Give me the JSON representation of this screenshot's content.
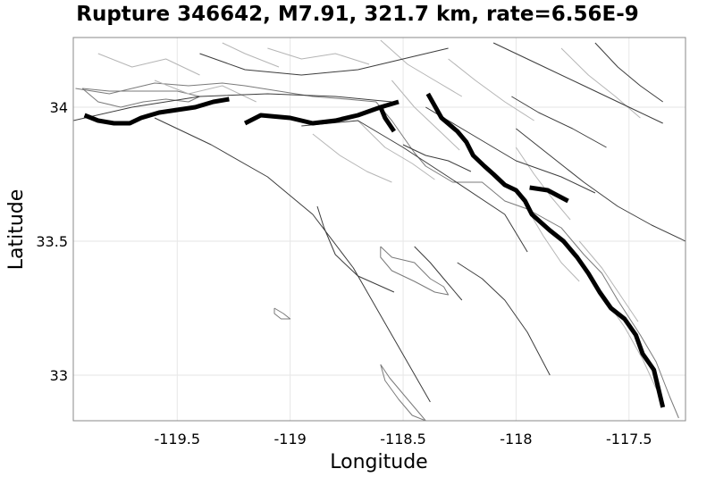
{
  "chart_data": {
    "type": "map",
    "title": "Rupture 346642, M7.91, 321.7 km, rate=6.56E-9",
    "xlabel": "Longitude",
    "ylabel": "Latitude",
    "xlim": [
      -119.96,
      -117.25
    ],
    "ylim": [
      32.83,
      34.26
    ],
    "x_ticks": [
      {
        "value": -119.5,
        "label": "-119.5"
      },
      {
        "value": -119.0,
        "label": "-119"
      },
      {
        "value": -118.5,
        "label": "-118.5"
      },
      {
        "value": -118.0,
        "label": "-118"
      },
      {
        "value": -117.5,
        "label": "-117.5"
      }
    ],
    "y_ticks": [
      {
        "value": 34.0,
        "label": "34"
      },
      {
        "value": 33.5,
        "label": "33.5"
      },
      {
        "value": 33.0,
        "label": "33"
      }
    ],
    "grid": true,
    "rupture_sections": [
      {
        "name": "rupture-section-1",
        "points": [
          [
            -119.91,
            33.97
          ],
          [
            -119.85,
            33.95
          ],
          [
            -119.78,
            33.94
          ],
          [
            -119.71,
            33.94
          ],
          [
            -119.66,
            33.96
          ],
          [
            -119.58,
            33.98
          ],
          [
            -119.5,
            33.99
          ],
          [
            -119.42,
            34.0
          ],
          [
            -119.34,
            34.02
          ],
          [
            -119.27,
            34.03
          ]
        ]
      },
      {
        "name": "rupture-section-2",
        "points": [
          [
            -119.2,
            33.94
          ],
          [
            -119.13,
            33.97
          ],
          [
            -119.0,
            33.96
          ],
          [
            -118.9,
            33.94
          ],
          [
            -118.8,
            33.95
          ],
          [
            -118.7,
            33.97
          ],
          [
            -118.6,
            34.0
          ],
          [
            -118.52,
            34.02
          ]
        ]
      },
      {
        "name": "rupture-section-3",
        "points": [
          [
            -118.6,
            34.0
          ],
          [
            -118.58,
            33.96
          ],
          [
            -118.54,
            33.91
          ]
        ]
      },
      {
        "name": "rupture-section-4",
        "points": [
          [
            -118.39,
            34.05
          ],
          [
            -118.33,
            33.96
          ],
          [
            -118.26,
            33.91
          ],
          [
            -118.22,
            33.87
          ],
          [
            -118.19,
            33.82
          ],
          [
            -118.14,
            33.78
          ],
          [
            -118.1,
            33.75
          ],
          [
            -118.05,
            33.71
          ],
          [
            -118.0,
            33.69
          ],
          [
            -117.96,
            33.65
          ],
          [
            -117.93,
            33.6
          ],
          [
            -117.85,
            33.54
          ],
          [
            -117.79,
            33.5
          ],
          [
            -117.73,
            33.44
          ],
          [
            -117.68,
            33.38
          ],
          [
            -117.63,
            33.31
          ],
          [
            -117.58,
            33.25
          ],
          [
            -117.52,
            33.21
          ],
          [
            -117.47,
            33.15
          ],
          [
            -117.44,
            33.08
          ],
          [
            -117.39,
            33.02
          ],
          [
            -117.35,
            32.88
          ]
        ]
      },
      {
        "name": "rupture-section-5",
        "points": [
          [
            -117.94,
            33.7
          ],
          [
            -117.86,
            33.69
          ],
          [
            -117.77,
            33.65
          ]
        ]
      }
    ],
    "regional_faults": [
      {
        "name": "fault-pv-trace",
        "points": [
          [
            -119.6,
            33.96
          ],
          [
            -119.35,
            33.86
          ],
          [
            -119.1,
            33.74
          ],
          [
            -118.9,
            33.6
          ],
          [
            -118.72,
            33.4
          ],
          [
            -118.55,
            33.15
          ],
          [
            -118.38,
            32.9
          ]
        ]
      },
      {
        "name": "fault-offshore-trace-a",
        "points": [
          [
            -118.88,
            33.63
          ],
          [
            -118.85,
            33.55
          ],
          [
            -118.8,
            33.45
          ],
          [
            -118.7,
            33.37
          ],
          [
            -118.54,
            33.31
          ]
        ]
      },
      {
        "name": "fault-offshore-trace-b",
        "points": [
          [
            -118.26,
            33.42
          ],
          [
            -118.15,
            33.36
          ],
          [
            -118.05,
            33.28
          ],
          [
            -117.95,
            33.16
          ],
          [
            -117.85,
            33.0
          ]
        ]
      },
      {
        "name": "fault-inland-trace-a",
        "points": [
          [
            -118.45,
            33.48
          ],
          [
            -118.38,
            33.42
          ],
          [
            -118.32,
            33.36
          ],
          [
            -118.24,
            33.28
          ]
        ]
      },
      {
        "name": "fault-channel-trace",
        "points": [
          [
            -119.96,
            33.95
          ],
          [
            -119.7,
            34.0
          ],
          [
            -119.4,
            34.04
          ],
          [
            -119.1,
            34.05
          ],
          [
            -118.8,
            34.04
          ],
          [
            -118.55,
            34.02
          ]
        ]
      },
      {
        "name": "fault-nf-trace",
        "points": [
          [
            -118.95,
            33.93
          ],
          [
            -118.7,
            33.95
          ],
          [
            -118.5,
            33.85
          ],
          [
            -118.3,
            33.74
          ],
          [
            -118.05,
            33.6
          ],
          [
            -117.95,
            33.46
          ]
        ]
      },
      {
        "name": "fault-inland-trace-b",
        "points": [
          [
            -118.4,
            34.0
          ],
          [
            -118.2,
            33.9
          ],
          [
            -118.0,
            33.8
          ],
          [
            -117.8,
            33.74
          ],
          [
            -117.65,
            33.68
          ]
        ]
      },
      {
        "name": "fault-elsinore-trace",
        "points": [
          [
            -118.0,
            33.92
          ],
          [
            -117.85,
            33.82
          ],
          [
            -117.7,
            33.72
          ],
          [
            -117.55,
            33.63
          ],
          [
            -117.4,
            33.56
          ],
          [
            -117.25,
            33.5
          ]
        ]
      },
      {
        "name": "fault-nw-trace",
        "points": [
          [
            -119.4,
            34.2
          ],
          [
            -119.2,
            34.14
          ],
          [
            -118.95,
            34.12
          ],
          [
            -118.7,
            34.14
          ],
          [
            -118.5,
            34.18
          ],
          [
            -118.3,
            34.22
          ]
        ]
      },
      {
        "name": "fault-ne-trace",
        "points": [
          [
            -118.1,
            34.24
          ],
          [
            -117.9,
            34.16
          ],
          [
            -117.7,
            34.08
          ],
          [
            -117.5,
            34.0
          ],
          [
            -117.35,
            33.94
          ]
        ]
      },
      {
        "name": "fault-far-east-trace",
        "points": [
          [
            -117.65,
            34.24
          ],
          [
            -117.55,
            34.15
          ],
          [
            -117.45,
            34.08
          ],
          [
            -117.35,
            34.02
          ]
        ]
      },
      {
        "name": "fault-cross-trace-a",
        "points": [
          [
            -118.02,
            34.04
          ],
          [
            -117.9,
            33.98
          ],
          [
            -117.75,
            33.92
          ],
          [
            -117.6,
            33.85
          ]
        ]
      },
      {
        "name": "fault-cross-trace-b",
        "points": [
          [
            -118.5,
            33.86
          ],
          [
            -118.4,
            33.82
          ],
          [
            -118.3,
            33.8
          ],
          [
            -118.2,
            33.76
          ]
        ]
      }
    ],
    "subsection_faults": [
      {
        "name": "subsection-grid-1",
        "points": [
          [
            -119.85,
            34.2
          ],
          [
            -119.7,
            34.15
          ],
          [
            -119.55,
            34.18
          ],
          [
            -119.4,
            34.12
          ]
        ]
      },
      {
        "name": "subsection-grid-2",
        "points": [
          [
            -119.6,
            34.1
          ],
          [
            -119.45,
            34.05
          ],
          [
            -119.3,
            34.08
          ],
          [
            -119.15,
            34.02
          ]
        ]
      },
      {
        "name": "subsection-grid-3",
        "points": [
          [
            -119.1,
            34.22
          ],
          [
            -118.95,
            34.18
          ],
          [
            -118.8,
            34.2
          ],
          [
            -118.65,
            34.16
          ]
        ]
      },
      {
        "name": "subsection-grid-4",
        "points": [
          [
            -118.9,
            33.9
          ],
          [
            -118.78,
            33.82
          ],
          [
            -118.66,
            33.76
          ],
          [
            -118.55,
            33.72
          ]
        ]
      },
      {
        "name": "subsection-grid-5",
        "points": [
          [
            -118.7,
            33.95
          ],
          [
            -118.58,
            33.85
          ],
          [
            -118.46,
            33.79
          ],
          [
            -118.36,
            33.73
          ]
        ]
      },
      {
        "name": "subsection-grid-6",
        "points": [
          [
            -118.55,
            34.1
          ],
          [
            -118.45,
            34.0
          ],
          [
            -118.35,
            33.92
          ],
          [
            -118.25,
            33.84
          ]
        ]
      },
      {
        "name": "subsection-grid-7",
        "points": [
          [
            -118.3,
            34.18
          ],
          [
            -118.18,
            34.1
          ],
          [
            -118.05,
            34.02
          ],
          [
            -117.92,
            33.95
          ]
        ]
      },
      {
        "name": "subsection-grid-8",
        "points": [
          [
            -118.0,
            33.85
          ],
          [
            -117.92,
            33.75
          ],
          [
            -117.84,
            33.66
          ],
          [
            -117.76,
            33.58
          ]
        ]
      },
      {
        "name": "subsection-grid-9",
        "points": [
          [
            -117.95,
            33.62
          ],
          [
            -117.88,
            33.52
          ],
          [
            -117.8,
            33.42
          ],
          [
            -117.72,
            33.35
          ]
        ]
      },
      {
        "name": "subsection-grid-10",
        "points": [
          [
            -117.72,
            33.5
          ],
          [
            -117.62,
            33.4
          ],
          [
            -117.54,
            33.3
          ],
          [
            -117.46,
            33.2
          ]
        ]
      },
      {
        "name": "subsection-grid-11",
        "points": [
          [
            -117.62,
            33.3
          ],
          [
            -117.52,
            33.18
          ],
          [
            -117.44,
            33.06
          ],
          [
            -117.38,
            32.95
          ]
        ]
      },
      {
        "name": "subsection-grid-12",
        "points": [
          [
            -117.8,
            34.22
          ],
          [
            -117.68,
            34.12
          ],
          [
            -117.56,
            34.04
          ],
          [
            -117.45,
            33.96
          ]
        ]
      },
      {
        "name": "subsection-grid-13",
        "points": [
          [
            -118.6,
            34.25
          ],
          [
            -118.48,
            34.16
          ],
          [
            -118.36,
            34.1
          ],
          [
            -118.24,
            34.04
          ]
        ]
      },
      {
        "name": "subsection-grid-14",
        "points": [
          [
            -119.3,
            34.24
          ],
          [
            -119.2,
            34.2
          ],
          [
            -119.05,
            34.15
          ]
        ]
      }
    ],
    "coastlines": [
      {
        "name": "coastline-mainland",
        "points": [
          [
            -119.95,
            34.07
          ],
          [
            -119.8,
            34.05
          ],
          [
            -119.7,
            34.07
          ],
          [
            -119.6,
            34.09
          ],
          [
            -119.45,
            34.08
          ],
          [
            -119.3,
            34.09
          ],
          [
            -119.2,
            34.08
          ],
          [
            -119.05,
            34.06
          ],
          [
            -118.9,
            34.04
          ],
          [
            -118.75,
            34.03
          ],
          [
            -118.62,
            34.02
          ],
          [
            -118.55,
            33.95
          ],
          [
            -118.45,
            33.83
          ],
          [
            -118.4,
            33.78
          ],
          [
            -118.28,
            33.72
          ],
          [
            -118.15,
            33.72
          ],
          [
            -118.05,
            33.65
          ],
          [
            -117.95,
            33.62
          ],
          [
            -117.8,
            33.55
          ],
          [
            -117.7,
            33.45
          ],
          [
            -117.62,
            33.38
          ],
          [
            -117.55,
            33.28
          ],
          [
            -117.45,
            33.15
          ],
          [
            -117.38,
            33.05
          ],
          [
            -117.32,
            32.92
          ],
          [
            -117.28,
            32.84
          ]
        ]
      },
      {
        "name": "coastline-catalina",
        "points": [
          [
            -118.6,
            33.48
          ],
          [
            -118.55,
            33.44
          ],
          [
            -118.45,
            33.42
          ],
          [
            -118.38,
            33.36
          ],
          [
            -118.32,
            33.33
          ],
          [
            -118.3,
            33.3
          ],
          [
            -118.36,
            33.31
          ],
          [
            -118.45,
            33.35
          ],
          [
            -118.55,
            33.39
          ],
          [
            -118.6,
            33.44
          ],
          [
            -118.6,
            33.48
          ]
        ]
      },
      {
        "name": "coastline-san-clemente",
        "points": [
          [
            -118.6,
            33.04
          ],
          [
            -118.56,
            32.99
          ],
          [
            -118.5,
            32.93
          ],
          [
            -118.44,
            32.87
          ],
          [
            -118.4,
            32.83
          ],
          [
            -118.46,
            32.85
          ],
          [
            -118.52,
            32.91
          ],
          [
            -118.58,
            32.98
          ],
          [
            -118.6,
            33.04
          ]
        ]
      },
      {
        "name": "coastline-santa-barbara",
        "points": [
          [
            -119.07,
            33.25
          ],
          [
            -119.03,
            33.23
          ],
          [
            -119.0,
            33.21
          ],
          [
            -119.04,
            33.21
          ],
          [
            -119.07,
            33.23
          ],
          [
            -119.07,
            33.25
          ]
        ]
      },
      {
        "name": "coastline-channel-islands",
        "points": [
          [
            -119.92,
            34.07
          ],
          [
            -119.85,
            34.02
          ],
          [
            -119.75,
            34.0
          ],
          [
            -119.65,
            34.02
          ],
          [
            -119.55,
            34.03
          ],
          [
            -119.45,
            34.02
          ],
          [
            -119.4,
            34.04
          ],
          [
            -119.5,
            34.06
          ],
          [
            -119.65,
            34.06
          ],
          [
            -119.8,
            34.06
          ],
          [
            -119.92,
            34.07
          ]
        ]
      }
    ]
  }
}
